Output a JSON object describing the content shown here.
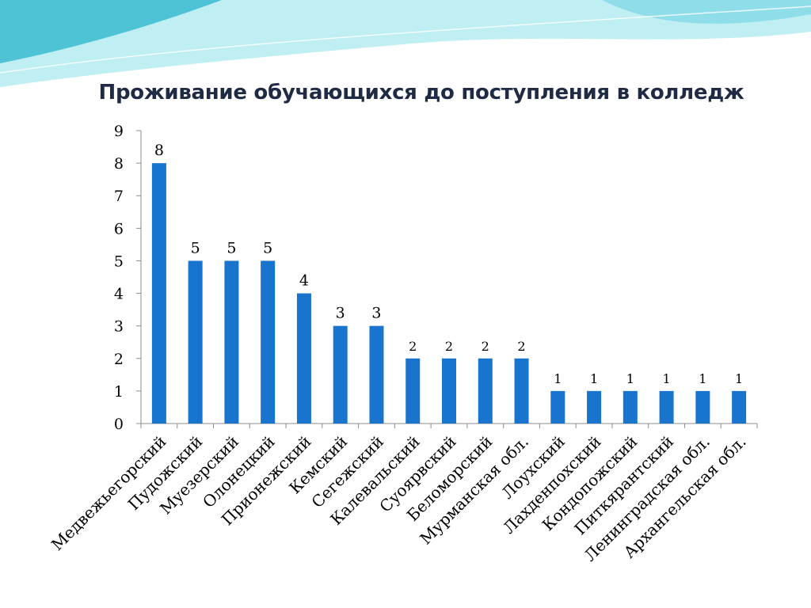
{
  "colors": {
    "bar": "#1874cd",
    "axis": "#8c8c8c",
    "title": "#1f2a44",
    "wave_light": "#bfeef3",
    "wave_mid": "#8fdde8",
    "wave_dark": "#4fc3d6"
  },
  "chart_data": {
    "type": "bar",
    "title": "Проживание обучающихся до поступления в колледж",
    "xlabel": "",
    "ylabel": "",
    "ylim": [
      0,
      9
    ],
    "yticks": [
      "0",
      "1",
      "2",
      "3",
      "4",
      "5",
      "6",
      "7",
      "8",
      "9"
    ],
    "grid": false,
    "legend": "none",
    "categories": [
      "Медвежьегорский",
      "Пудожский",
      "Муезерский",
      "Олонецкий",
      "Прионежский",
      "Кемский",
      "Сегежский",
      "Калевальский",
      "Суоярвский",
      "Беломорский",
      "Мурманская обл.",
      "Лоухский",
      "Лахденпохский",
      "Кондопожский",
      "Питкярантский",
      "Ленинградская обл.",
      "Архангельская обл."
    ],
    "values": [
      8,
      5,
      5,
      5,
      4,
      3,
      3,
      2,
      2,
      2,
      2,
      1,
      1,
      1,
      1,
      1,
      1
    ],
    "data_labels": [
      "8",
      "5",
      "5",
      "5",
      "4",
      "3",
      "3",
      "2",
      "2",
      "2",
      "2",
      "1",
      "1",
      "1",
      "1",
      "1",
      "1"
    ]
  }
}
